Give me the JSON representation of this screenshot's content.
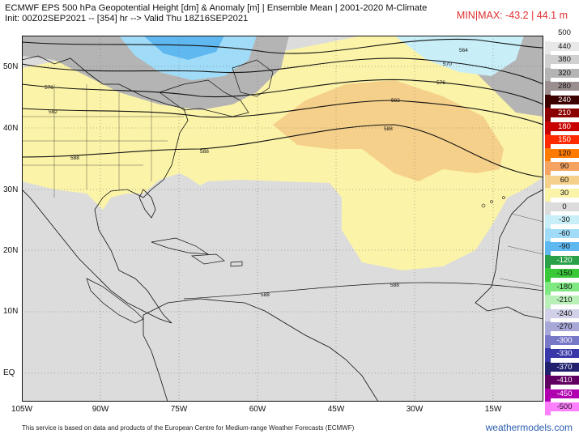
{
  "header": {
    "line1": "ECMWF EPS 500 hPa Geopotential Height [dm] & Anomaly [m] | Ensemble Mean | 2001-2020 M-Climate",
    "line2": "Init: 00Z02SEP2021 -- [354] hr --> Valid Thu 18Z16SEP2021",
    "minmax": "MIN|MAX: -43.2 | 44.1 m"
  },
  "lat_labels": [
    "50N",
    "40N",
    "30N",
    "20N",
    "10N",
    "EQ"
  ],
  "lon_labels": [
    "105W",
    "90W",
    "75W",
    "60W",
    "45W",
    "30W",
    "15W"
  ],
  "contour_labels": [
    "564",
    "570",
    "576",
    "582",
    "588",
    "576",
    "582",
    "588",
    "588",
    "588",
    "588"
  ],
  "colorbar": {
    "labels": [
      "500",
      "440",
      "380",
      "320",
      "280",
      "240",
      "210",
      "180",
      "150",
      "120",
      "90",
      "60",
      "30",
      "0",
      "-30",
      "-60",
      "-90",
      "-120",
      "-150",
      "-180",
      "-210",
      "-240",
      "-270",
      "-300",
      "-330",
      "-370",
      "-410",
      "-450",
      "-500"
    ],
    "colors": [
      "#ffffff",
      "#e8e8e8",
      "#d0d0d0",
      "#b4b4b4",
      "#9a8e8e",
      "#3c0000",
      "#8b0000",
      "#c80000",
      "#ff2a00",
      "#ff7a00",
      "#f4a460",
      "#f5d08a",
      "#fbf3a8",
      "#dcdcdc",
      "#c8eef8",
      "#a0dcf8",
      "#60b8f0",
      "#2aa048",
      "#38c838",
      "#80e880",
      "#b8f0b8",
      "#d0d0e8",
      "#a8a8d8",
      "#7878c8",
      "#3838a8",
      "#20206e",
      "#600060",
      "#b000b0",
      "#ff80ff"
    ]
  },
  "footer": {
    "credit": "This service is based on data and products of the European Centre for Medium-range Weather Forecasts (ECMWF)",
    "brand": "weathermodels.com"
  }
}
